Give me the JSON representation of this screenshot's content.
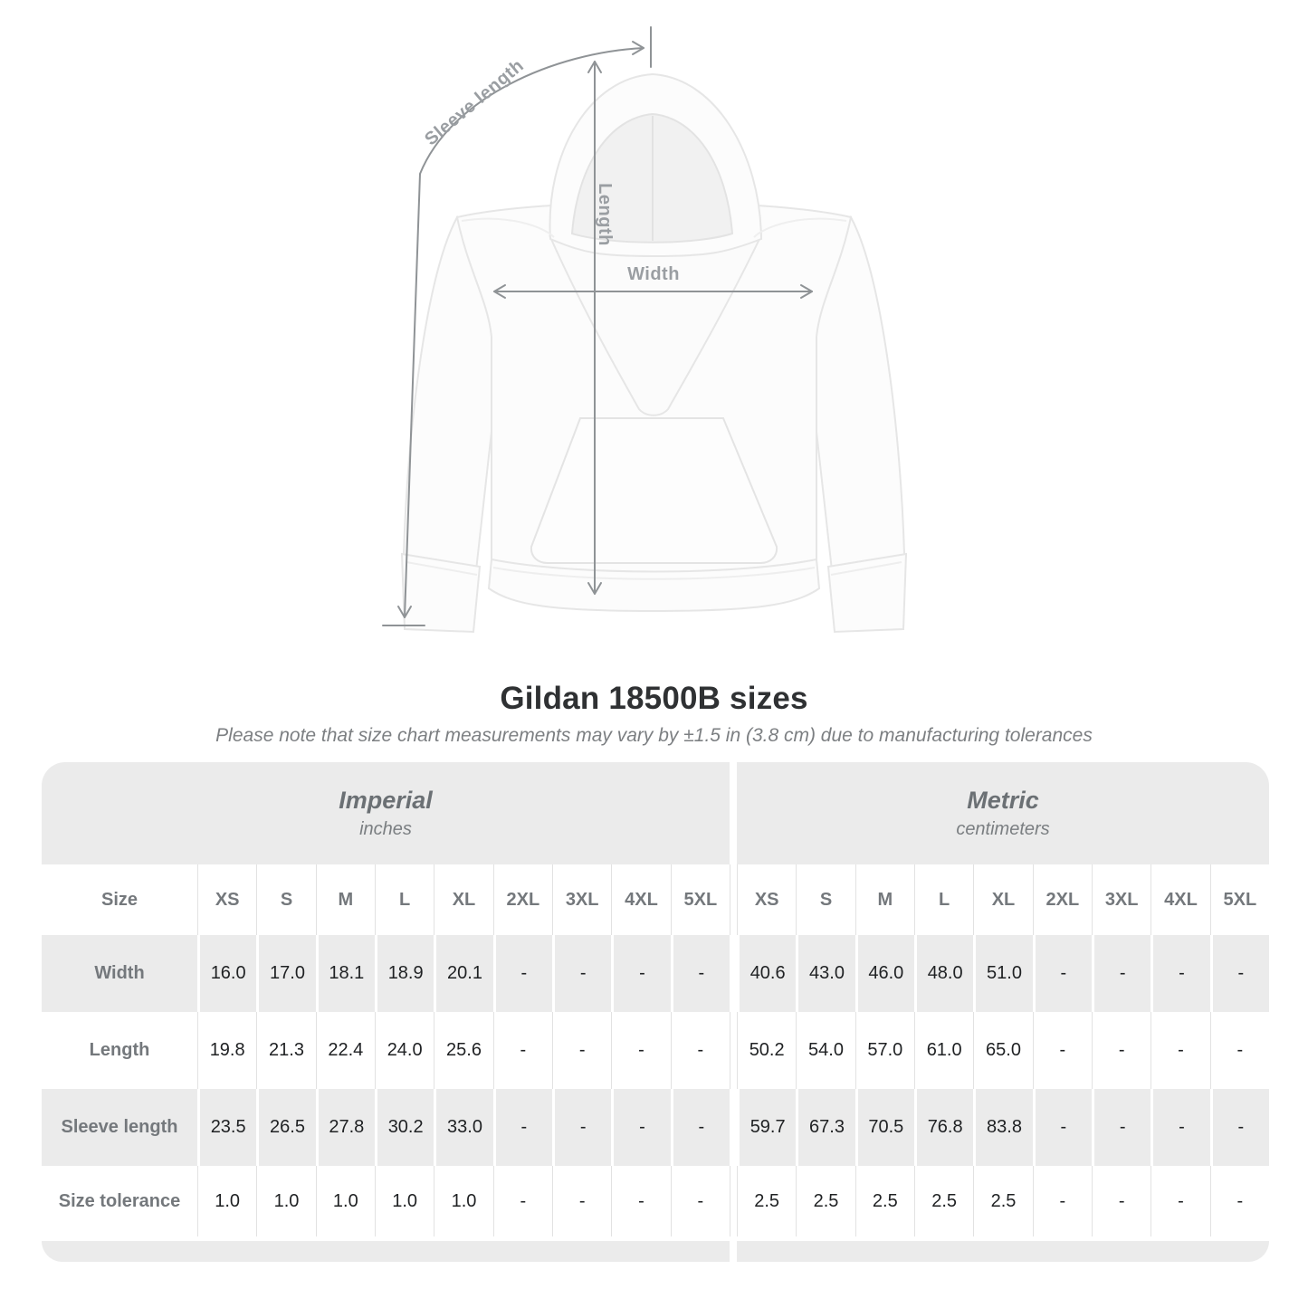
{
  "diagram": {
    "labels": {
      "sleeve_length": "Sleeve length",
      "length": "Length",
      "width": "Width"
    }
  },
  "header": {
    "title": "Gildan 18500B sizes",
    "subtitle": "Please note that size chart measurements may vary by ±1.5 in (3.8 cm) due to manufacturing tolerances"
  },
  "size_chart": {
    "sections": [
      {
        "name": "Imperial",
        "unit": "inches"
      },
      {
        "name": "Metric",
        "unit": "centimeters"
      }
    ],
    "corner_label": "Size",
    "sizes": [
      "XS",
      "S",
      "M",
      "L",
      "XL",
      "2XL",
      "3XL",
      "4XL",
      "5XL"
    ],
    "rows": [
      {
        "label": "Width",
        "shaded": true,
        "imperial": [
          "16.0",
          "17.0",
          "18.1",
          "18.9",
          "20.1",
          "-",
          "-",
          "-",
          "-"
        ],
        "metric": [
          "40.6",
          "43.0",
          "46.0",
          "48.0",
          "51.0",
          "-",
          "-",
          "-",
          "-"
        ]
      },
      {
        "label": "Length",
        "shaded": false,
        "imperial": [
          "19.8",
          "21.3",
          "22.4",
          "24.0",
          "25.6",
          "-",
          "-",
          "-",
          "-"
        ],
        "metric": [
          "50.2",
          "54.0",
          "57.0",
          "61.0",
          "65.0",
          "-",
          "-",
          "-",
          "-"
        ]
      },
      {
        "label": "Sleeve length",
        "shaded": true,
        "imperial": [
          "23.5",
          "26.5",
          "27.8",
          "30.2",
          "33.0",
          "-",
          "-",
          "-",
          "-"
        ],
        "metric": [
          "59.7",
          "67.3",
          "70.5",
          "76.8",
          "83.8",
          "-",
          "-",
          "-",
          "-"
        ]
      },
      {
        "label": "Size tolerance",
        "shaded": false,
        "imperial": [
          "1.0",
          "1.0",
          "1.0",
          "1.0",
          "1.0",
          "-",
          "-",
          "-",
          "-"
        ],
        "metric": [
          "2.5",
          "2.5",
          "2.5",
          "2.5",
          "2.5",
          "-",
          "-",
          "-",
          "-"
        ]
      }
    ]
  },
  "colors": {
    "band_gray": "#ebebeb",
    "row_shade": "#ebebeb",
    "separator": "#e2e2e2",
    "arrow": "#8f9396",
    "diagram_label": "#9a9ea2",
    "heading_text": "#2f3133",
    "value_text": "#1f2123",
    "table_label_text": "#74787c"
  }
}
